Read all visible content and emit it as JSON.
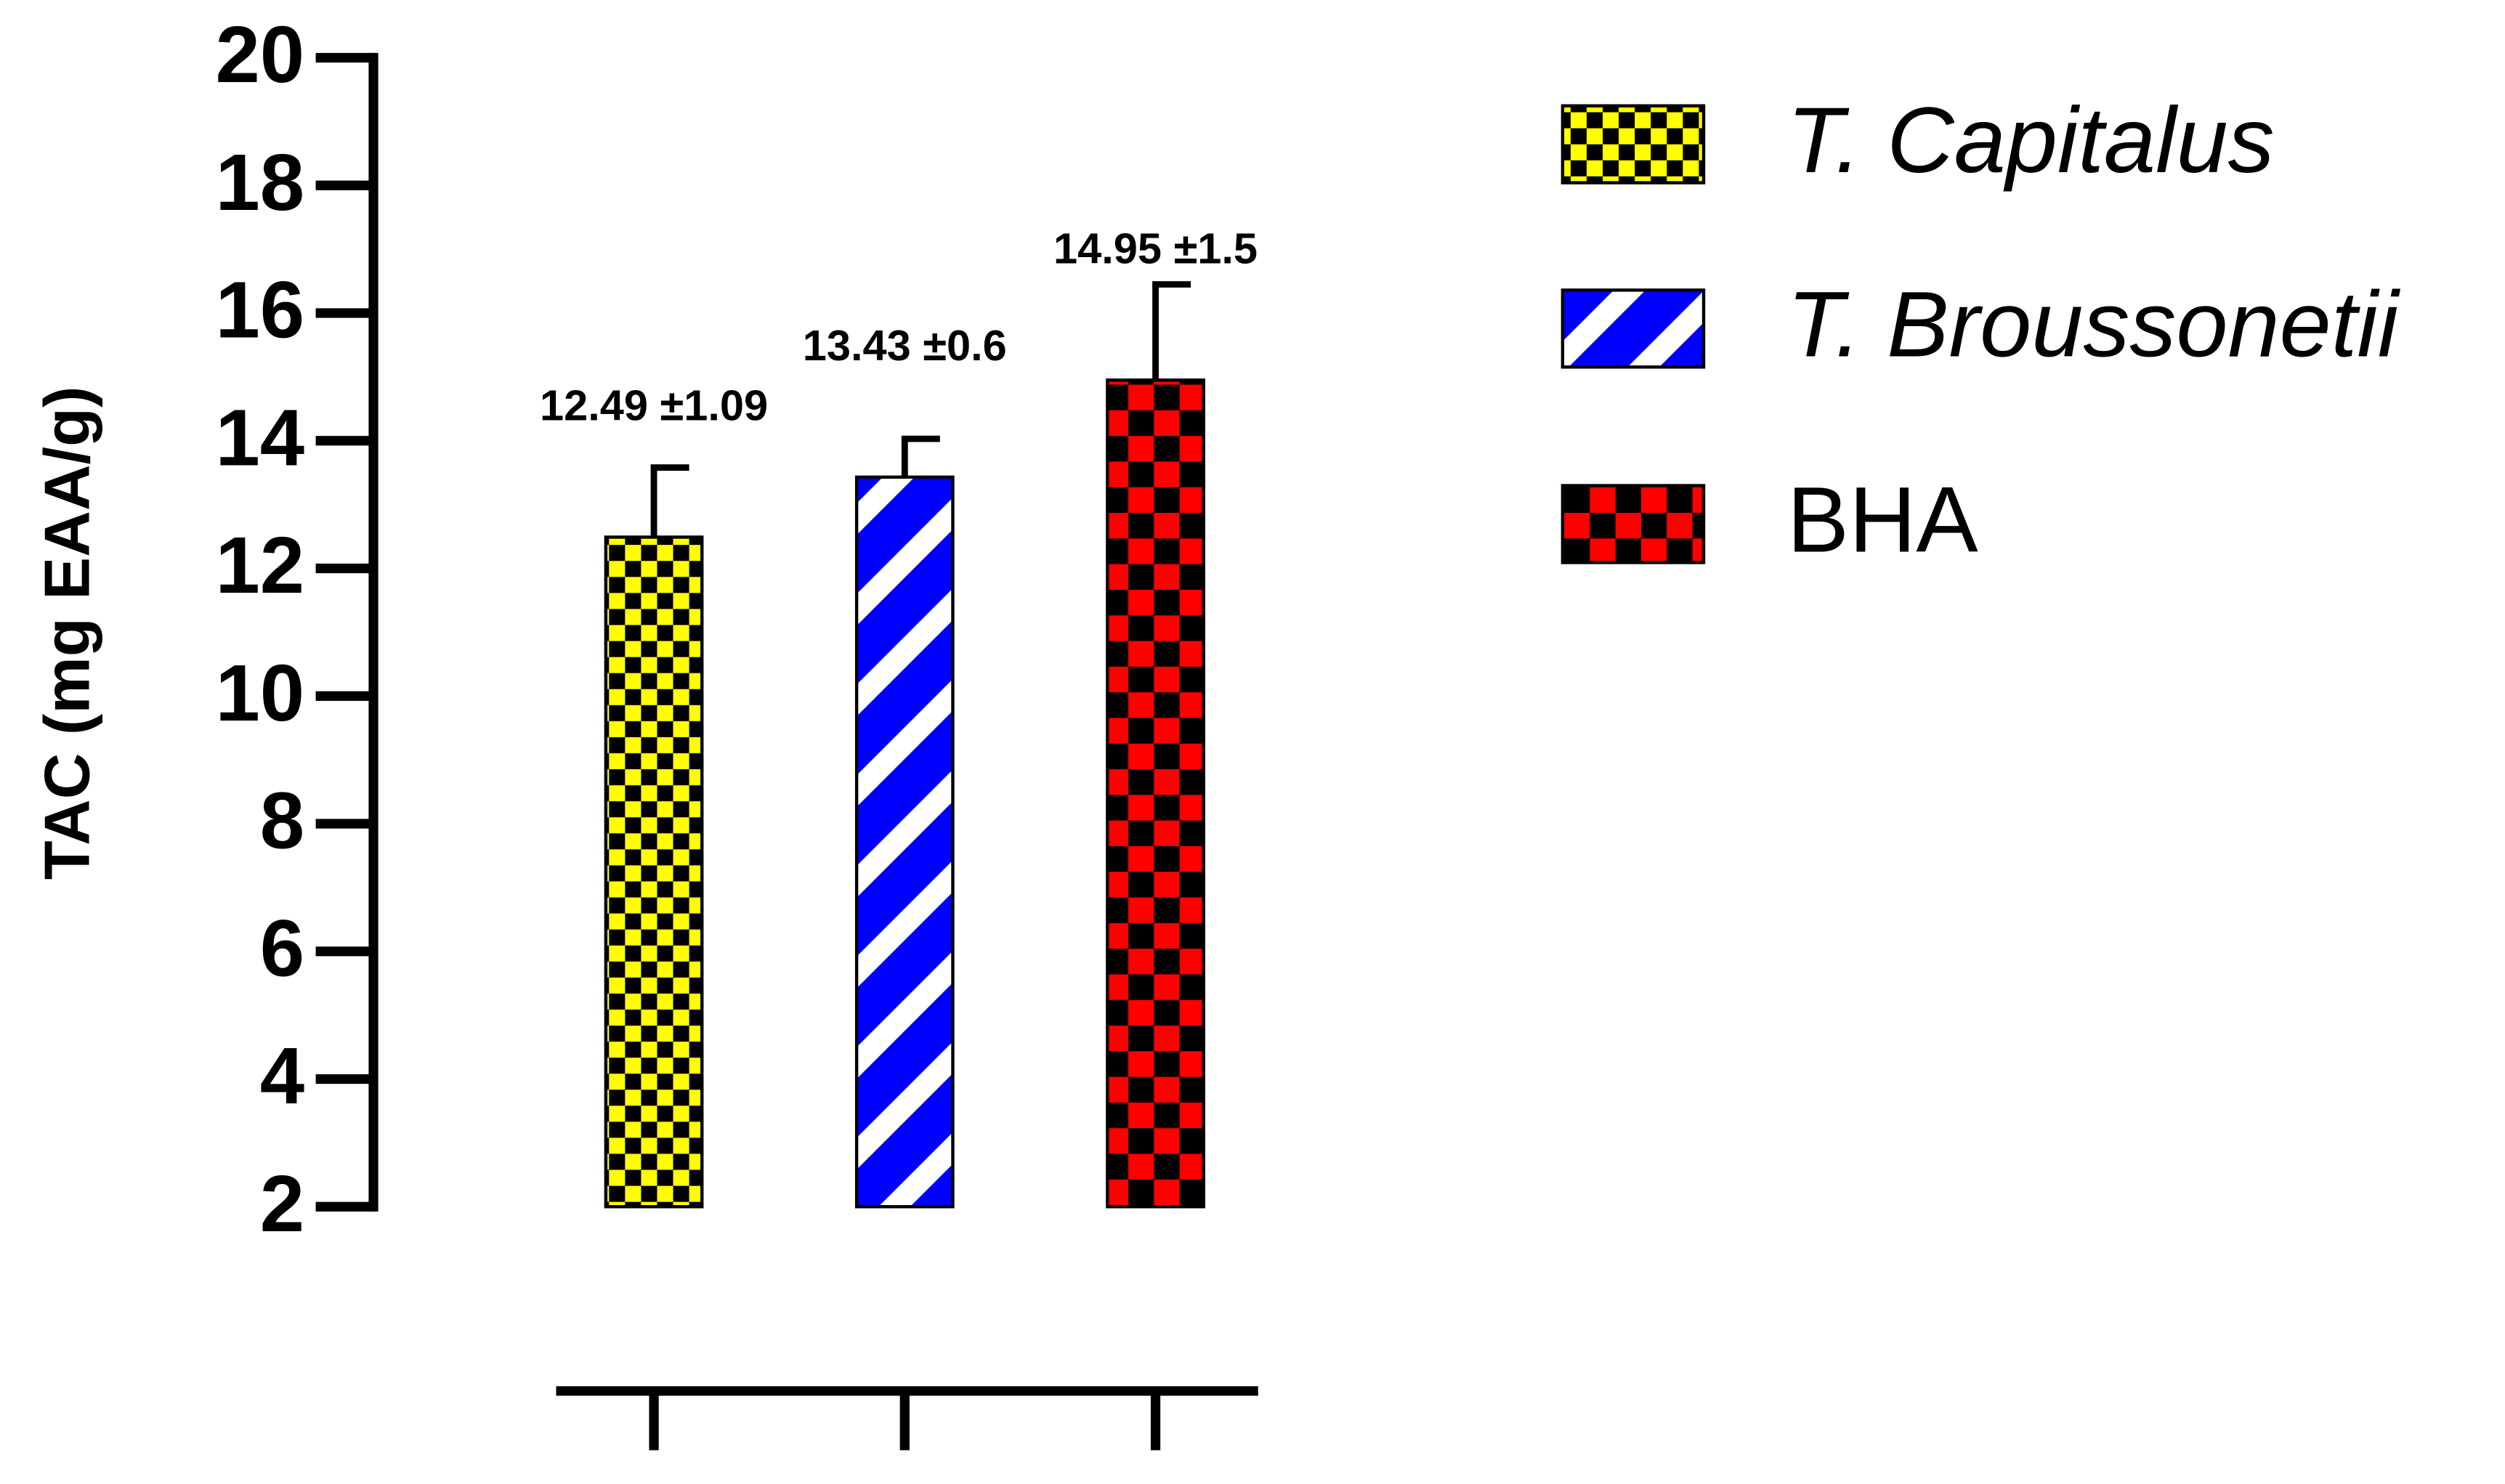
{
  "chart_data": {
    "type": "bar",
    "y_label": "TAC (mg EAA/g)",
    "categories": [
      null,
      null,
      null
    ],
    "series": [
      {
        "name": "T. Capitalus",
        "color": "#ffff00",
        "pattern": "small-checker",
        "italic": true,
        "values": [
          12.49,
          null,
          null
        ],
        "errors": [
          1.09,
          null,
          null
        ],
        "value_labels": [
          "12.49 ±1.09",
          null,
          null
        ]
      },
      {
        "name": "T. Broussonetii",
        "color": "#0000ff",
        "pattern": "diagonal-stripes",
        "italic": true,
        "values": [
          null,
          13.43,
          null
        ],
        "errors": [
          null,
          0.6,
          null
        ],
        "value_labels": [
          null,
          "13.43 ±0.6",
          null
        ]
      },
      {
        "name": "BHA",
        "color": "#ff0000",
        "pattern": "large-checker",
        "italic": false,
        "values": [
          null,
          null,
          14.95
        ],
        "errors": [
          null,
          null,
          1.5
        ],
        "value_labels": [
          null,
          null,
          "14.95 ±1.5"
        ]
      }
    ],
    "ylim": [
      2,
      20
    ],
    "yticks": [
      2,
      4,
      6,
      8,
      10,
      12,
      14,
      16,
      18,
      20
    ],
    "grid": false,
    "legend": "right"
  }
}
